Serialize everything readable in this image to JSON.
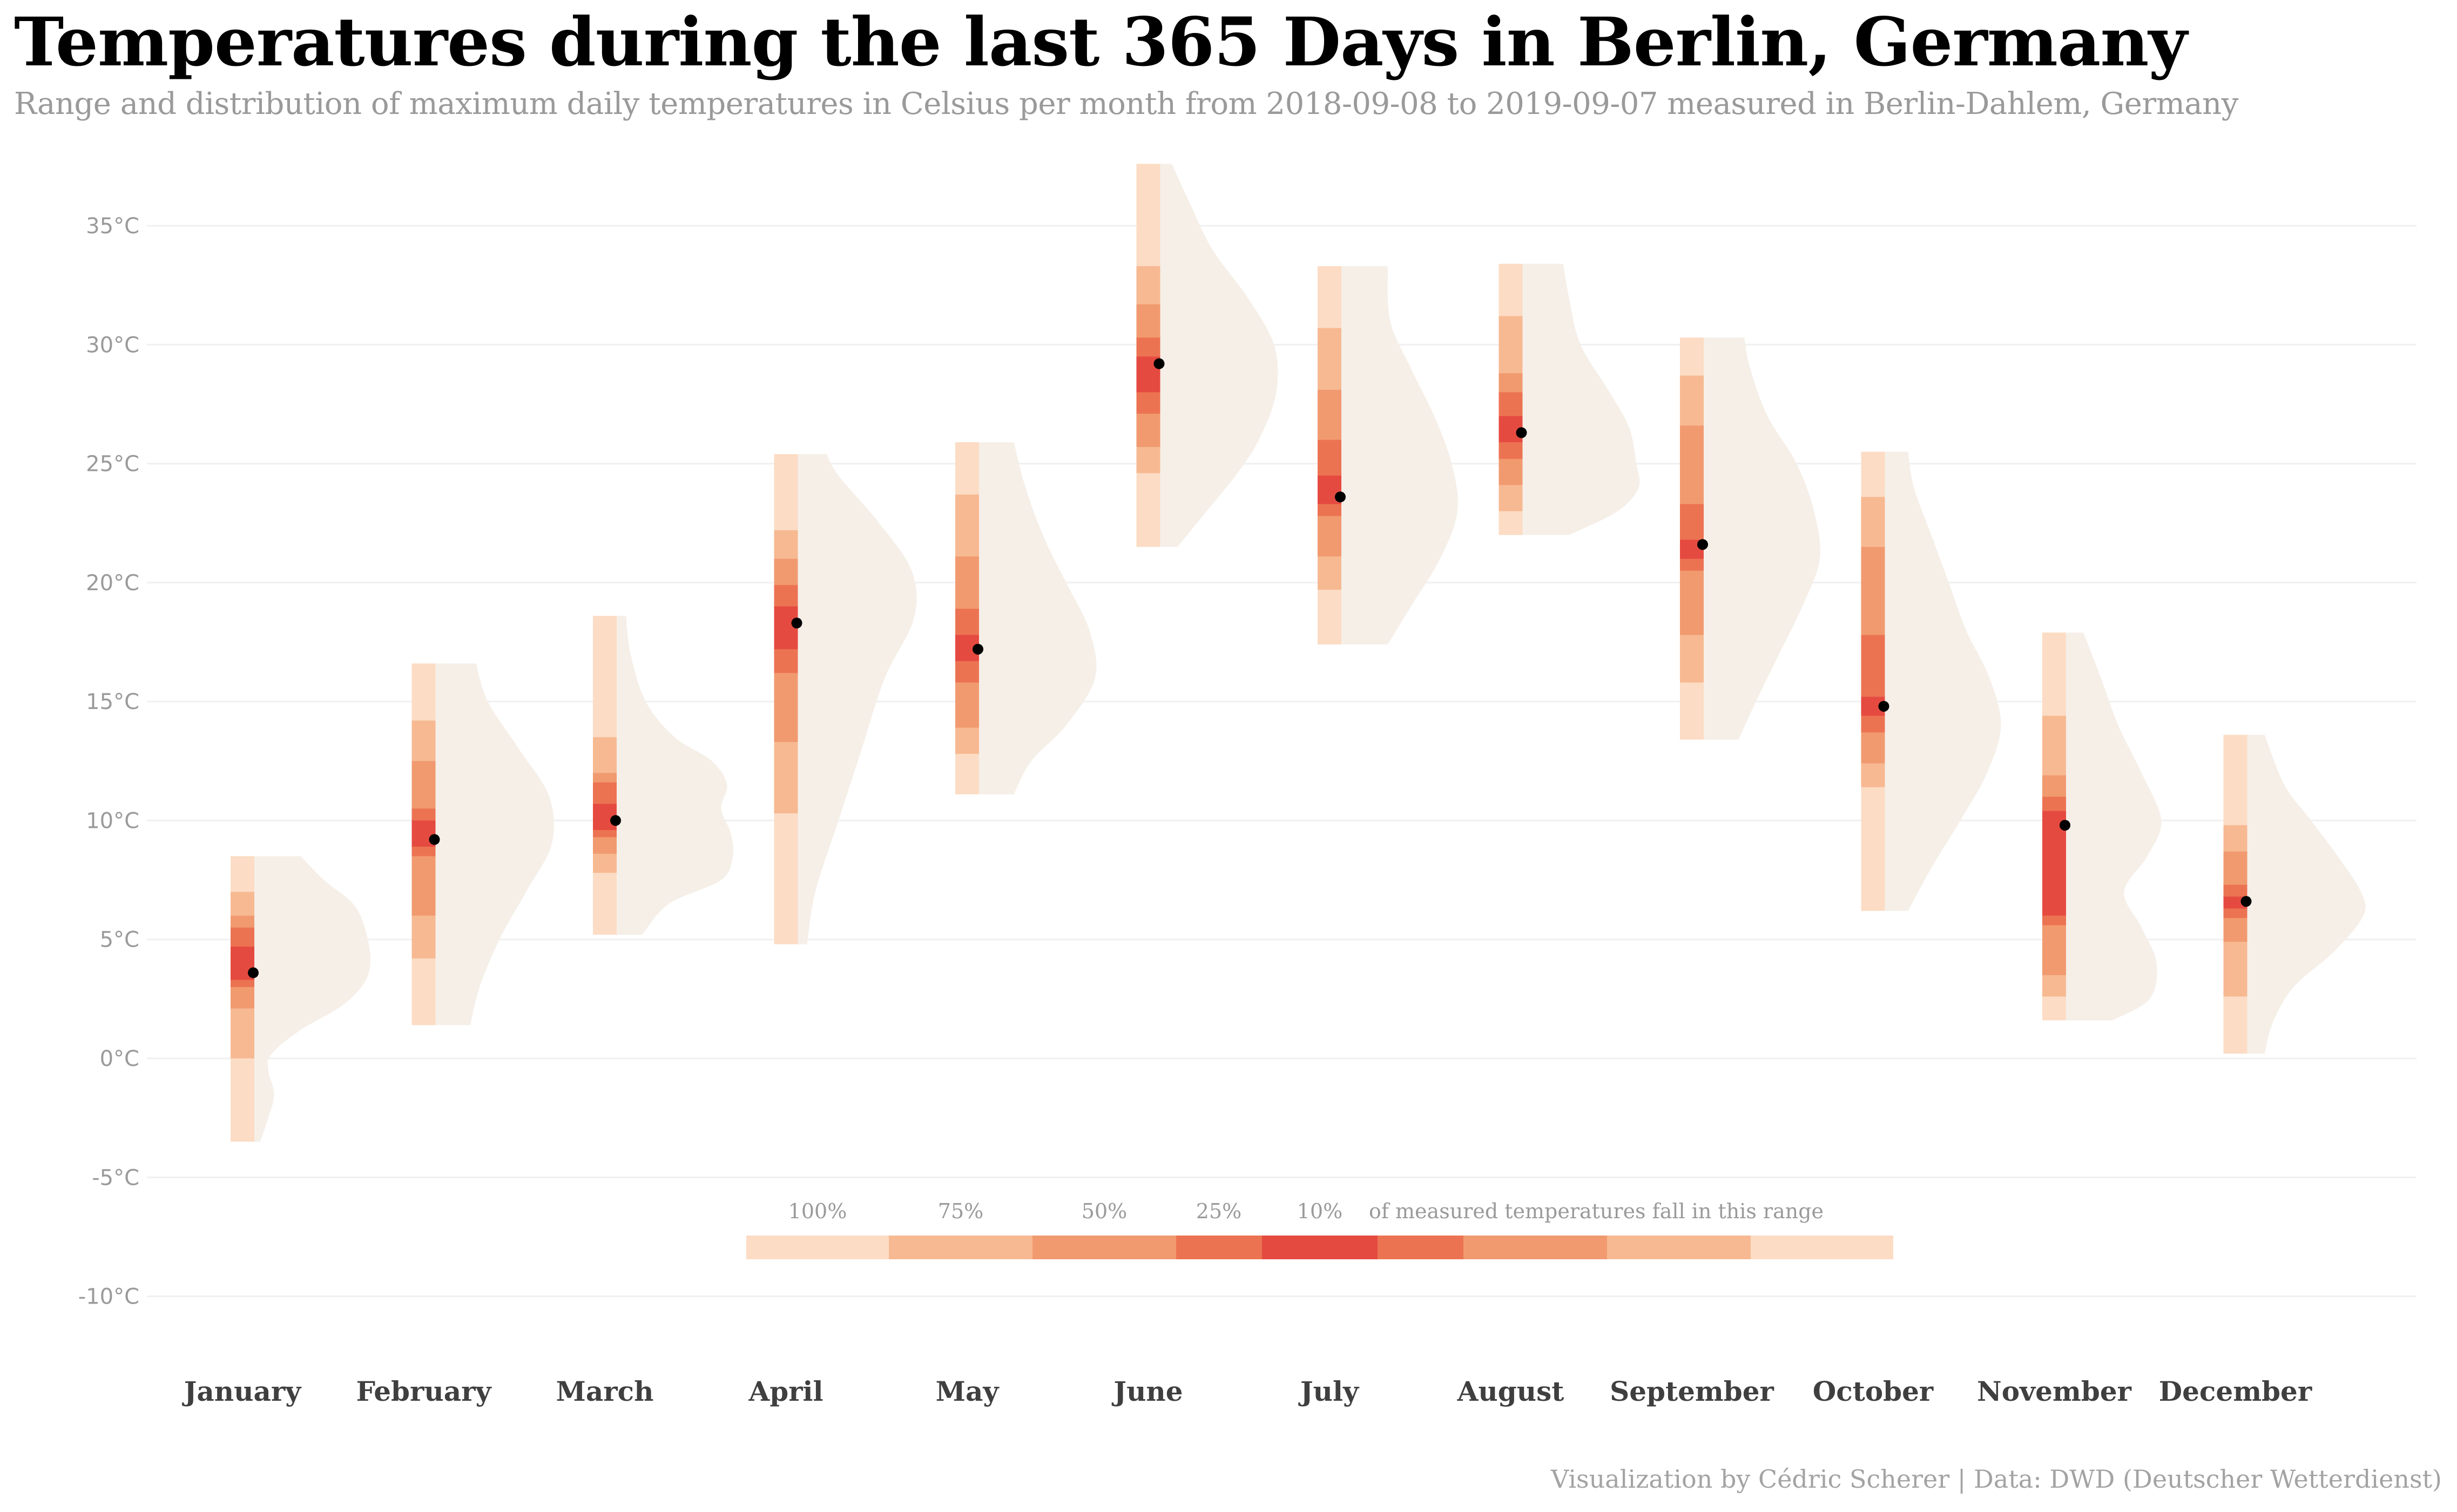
{
  "title": "Temperatures during the last 365 Days in Berlin, Germany",
  "subtitle": "Range and distribution of maximum daily temperatures in Celsius per month from 2018-09-08 to 2019-09-07 measured in Berlin-Dahlem, Germany",
  "caption": "Visualization by Cédric Scherer  |  Data: DWD (Deutscher Wetterdienst)",
  "colors": {
    "band_100": "#fcdcc4",
    "band_75": "#f7b992",
    "band_50": "#f19a70",
    "band_25": "#ec7352",
    "band_10": "#e54a40",
    "density": "#f5efe8",
    "median_point": "#000000",
    "grid": "#f0f0f0"
  },
  "chart_data": {
    "type": "interval-density",
    "ylim": [
      -10,
      37.5
    ],
    "y_ticks": [
      -10,
      -5,
      0,
      5,
      10,
      15,
      20,
      25,
      30,
      35
    ],
    "y_tick_labels": [
      "-10°C",
      "-5°C",
      "0°C",
      "5°C",
      "10°C",
      "15°C",
      "20°C",
      "25°C",
      "30°C",
      "35°C"
    ],
    "grid": true,
    "legend": {
      "placement": "bottom-center",
      "labels": [
        "100%",
        "75%",
        "50%",
        "25%",
        "10%"
      ],
      "text": "of measured temperatures fall in this range"
    },
    "months": [
      {
        "name": "January",
        "median": 3.6,
        "i100": [
          -3.5,
          8.5
        ],
        "i75": [
          0.0,
          7.0
        ],
        "i50": [
          2.1,
          6.0
        ],
        "i25": [
          3.0,
          5.5
        ],
        "i10": [
          3.3,
          4.7
        ],
        "density": [
          [
            -3.5,
            0.05
          ],
          [
            -2.5,
            0.12
          ],
          [
            -1.5,
            0.17
          ],
          [
            -0.5,
            0.12
          ],
          [
            0.2,
            0.15
          ],
          [
            1.2,
            0.4
          ],
          [
            2.2,
            0.75
          ],
          [
            3.2,
            0.95
          ],
          [
            4.2,
            1.0
          ],
          [
            5.5,
            0.95
          ],
          [
            6.5,
            0.85
          ],
          [
            7.5,
            0.6
          ],
          [
            8.5,
            0.4
          ]
        ]
      },
      {
        "name": "February",
        "median": 9.2,
        "i100": [
          1.4,
          16.6
        ],
        "i75": [
          4.2,
          14.2
        ],
        "i50": [
          6.0,
          12.5
        ],
        "i25": [
          8.5,
          10.5
        ],
        "i10": [
          8.9,
          10.0
        ],
        "density": [
          [
            1.4,
            0.3
          ],
          [
            3,
            0.38
          ],
          [
            5,
            0.55
          ],
          [
            7,
            0.78
          ],
          [
            9,
            1.0
          ],
          [
            11,
            0.98
          ],
          [
            13,
            0.72
          ],
          [
            15,
            0.45
          ],
          [
            16.6,
            0.35
          ]
        ]
      },
      {
        "name": "March",
        "median": 10.0,
        "i100": [
          5.2,
          18.6
        ],
        "i75": [
          7.8,
          13.5
        ],
        "i50": [
          8.6,
          12.0
        ],
        "i25": [
          9.3,
          11.6
        ],
        "i10": [
          9.6,
          10.7
        ],
        "density": [
          [
            5.2,
            0.22
          ],
          [
            6.5,
            0.45
          ],
          [
            7.5,
            0.9
          ],
          [
            8.5,
            1.0
          ],
          [
            9.5,
            0.98
          ],
          [
            10.5,
            0.9
          ],
          [
            11.5,
            0.95
          ],
          [
            12.5,
            0.82
          ],
          [
            13.5,
            0.5
          ],
          [
            15,
            0.25
          ],
          [
            17,
            0.12
          ],
          [
            18.6,
            0.08
          ]
        ]
      },
      {
        "name": "April",
        "median": 18.3,
        "i100": [
          4.8,
          25.4
        ],
        "i75": [
          10.3,
          22.2
        ],
        "i50": [
          13.3,
          21.0
        ],
        "i25": [
          16.2,
          19.9
        ],
        "i10": [
          17.2,
          19.0
        ],
        "density": [
          [
            4.8,
            0.08
          ],
          [
            7,
            0.15
          ],
          [
            10,
            0.35
          ],
          [
            13,
            0.55
          ],
          [
            16,
            0.75
          ],
          [
            18.5,
            1.0
          ],
          [
            20.5,
            0.98
          ],
          [
            22.5,
            0.7
          ],
          [
            24.5,
            0.35
          ],
          [
            25.4,
            0.25
          ]
        ]
      },
      {
        "name": "May",
        "median": 17.2,
        "i100": [
          11.1,
          25.9
        ],
        "i75": [
          12.8,
          23.7
        ],
        "i50": [
          13.9,
          21.1
        ],
        "i25": [
          15.8,
          18.9
        ],
        "i10": [
          16.7,
          17.8
        ],
        "density": [
          [
            11.1,
            0.3
          ],
          [
            12.5,
            0.45
          ],
          [
            14,
            0.75
          ],
          [
            16,
            1.0
          ],
          [
            18,
            0.95
          ],
          [
            20,
            0.75
          ],
          [
            22,
            0.55
          ],
          [
            24,
            0.4
          ],
          [
            25.9,
            0.3
          ]
        ]
      },
      {
        "name": "June",
        "median": 29.2,
        "i100": [
          21.5,
          37.6
        ],
        "i75": [
          24.6,
          33.3
        ],
        "i50": [
          25.7,
          31.7
        ],
        "i25": [
          27.1,
          30.3
        ],
        "i10": [
          28.0,
          29.5
        ],
        "density": [
          [
            21.5,
            0.15
          ],
          [
            23,
            0.4
          ],
          [
            24.5,
            0.65
          ],
          [
            26,
            0.85
          ],
          [
            28,
            1.0
          ],
          [
            30,
            0.98
          ],
          [
            32,
            0.75
          ],
          [
            34,
            0.45
          ],
          [
            36,
            0.25
          ],
          [
            37.6,
            0.1
          ]
        ]
      },
      {
        "name": "July",
        "median": 23.6,
        "i100": [
          17.4,
          33.3
        ],
        "i75": [
          19.7,
          30.7
        ],
        "i50": [
          21.1,
          28.1
        ],
        "i25": [
          22.8,
          26.0
        ],
        "i10": [
          23.3,
          24.5
        ],
        "density": [
          [
            17.4,
            0.4
          ],
          [
            19,
            0.6
          ],
          [
            21,
            0.85
          ],
          [
            23,
            1.0
          ],
          [
            25,
            0.95
          ],
          [
            27,
            0.8
          ],
          [
            29,
            0.6
          ],
          [
            31,
            0.42
          ],
          [
            33.3,
            0.4
          ]
        ]
      },
      {
        "name": "August",
        "median": 26.3,
        "i100": [
          22.0,
          33.4
        ],
        "i75": [
          23.0,
          31.2
        ],
        "i50": [
          24.1,
          28.8
        ],
        "i25": [
          25.2,
          28.0
        ],
        "i10": [
          25.9,
          27.0
        ],
        "density": [
          [
            22,
            0.4
          ],
          [
            23,
            0.82
          ],
          [
            24,
            1.0
          ],
          [
            25,
            0.98
          ],
          [
            26.5,
            0.92
          ],
          [
            28,
            0.75
          ],
          [
            30,
            0.5
          ],
          [
            32,
            0.4
          ],
          [
            33.4,
            0.35
          ]
        ]
      },
      {
        "name": "September",
        "median": 21.6,
        "i100": [
          13.4,
          30.3
        ],
        "i75": [
          15.8,
          28.7
        ],
        "i50": [
          17.8,
          26.6
        ],
        "i25": [
          20.5,
          23.3
        ],
        "i10": [
          21.0,
          21.8
        ],
        "density": [
          [
            13.4,
            0.3
          ],
          [
            15,
            0.45
          ],
          [
            17,
            0.65
          ],
          [
            19,
            0.85
          ],
          [
            21,
            1.0
          ],
          [
            23,
            0.95
          ],
          [
            25,
            0.8
          ],
          [
            27,
            0.55
          ],
          [
            29,
            0.4
          ],
          [
            30.3,
            0.35
          ]
        ]
      },
      {
        "name": "October",
        "median": 14.8,
        "i100": [
          6.2,
          25.5
        ],
        "i75": [
          11.4,
          23.6
        ],
        "i50": [
          12.4,
          21.5
        ],
        "i25": [
          13.7,
          17.8
        ],
        "i10": [
          14.4,
          15.2
        ],
        "density": [
          [
            6.2,
            0.2
          ],
          [
            8,
            0.4
          ],
          [
            10,
            0.65
          ],
          [
            12,
            0.88
          ],
          [
            14,
            1.0
          ],
          [
            16,
            0.9
          ],
          [
            18,
            0.7
          ],
          [
            20,
            0.55
          ],
          [
            22,
            0.4
          ],
          [
            24,
            0.25
          ],
          [
            25.5,
            0.2
          ]
        ]
      },
      {
        "name": "November",
        "median": 9.8,
        "i100": [
          1.6,
          17.9
        ],
        "i75": [
          2.6,
          14.4
        ],
        "i50": [
          3.5,
          11.9
        ],
        "i25": [
          5.6,
          11.0
        ],
        "i10": [
          6.0,
          10.4
        ],
        "density": [
          [
            1.6,
            0.4
          ],
          [
            2.5,
            0.72
          ],
          [
            4,
            0.78
          ],
          [
            5.5,
            0.65
          ],
          [
            7,
            0.5
          ],
          [
            8.5,
            0.7
          ],
          [
            10,
            0.82
          ],
          [
            12,
            0.65
          ],
          [
            14,
            0.45
          ],
          [
            16,
            0.3
          ],
          [
            17.9,
            0.15
          ]
        ]
      },
      {
        "name": "December",
        "median": 6.6,
        "i100": [
          0.2,
          13.6
        ],
        "i75": [
          2.6,
          9.8
        ],
        "i50": [
          4.9,
          8.7
        ],
        "i25": [
          5.9,
          7.3
        ],
        "i10": [
          6.3,
          6.8
        ],
        "density": [
          [
            0.2,
            0.15
          ],
          [
            1.5,
            0.22
          ],
          [
            3,
            0.4
          ],
          [
            4.5,
            0.75
          ],
          [
            6,
            1.0
          ],
          [
            7,
            0.98
          ],
          [
            8.5,
            0.78
          ],
          [
            10,
            0.55
          ],
          [
            11.5,
            0.32
          ],
          [
            13.6,
            0.15
          ]
        ]
      }
    ]
  }
}
